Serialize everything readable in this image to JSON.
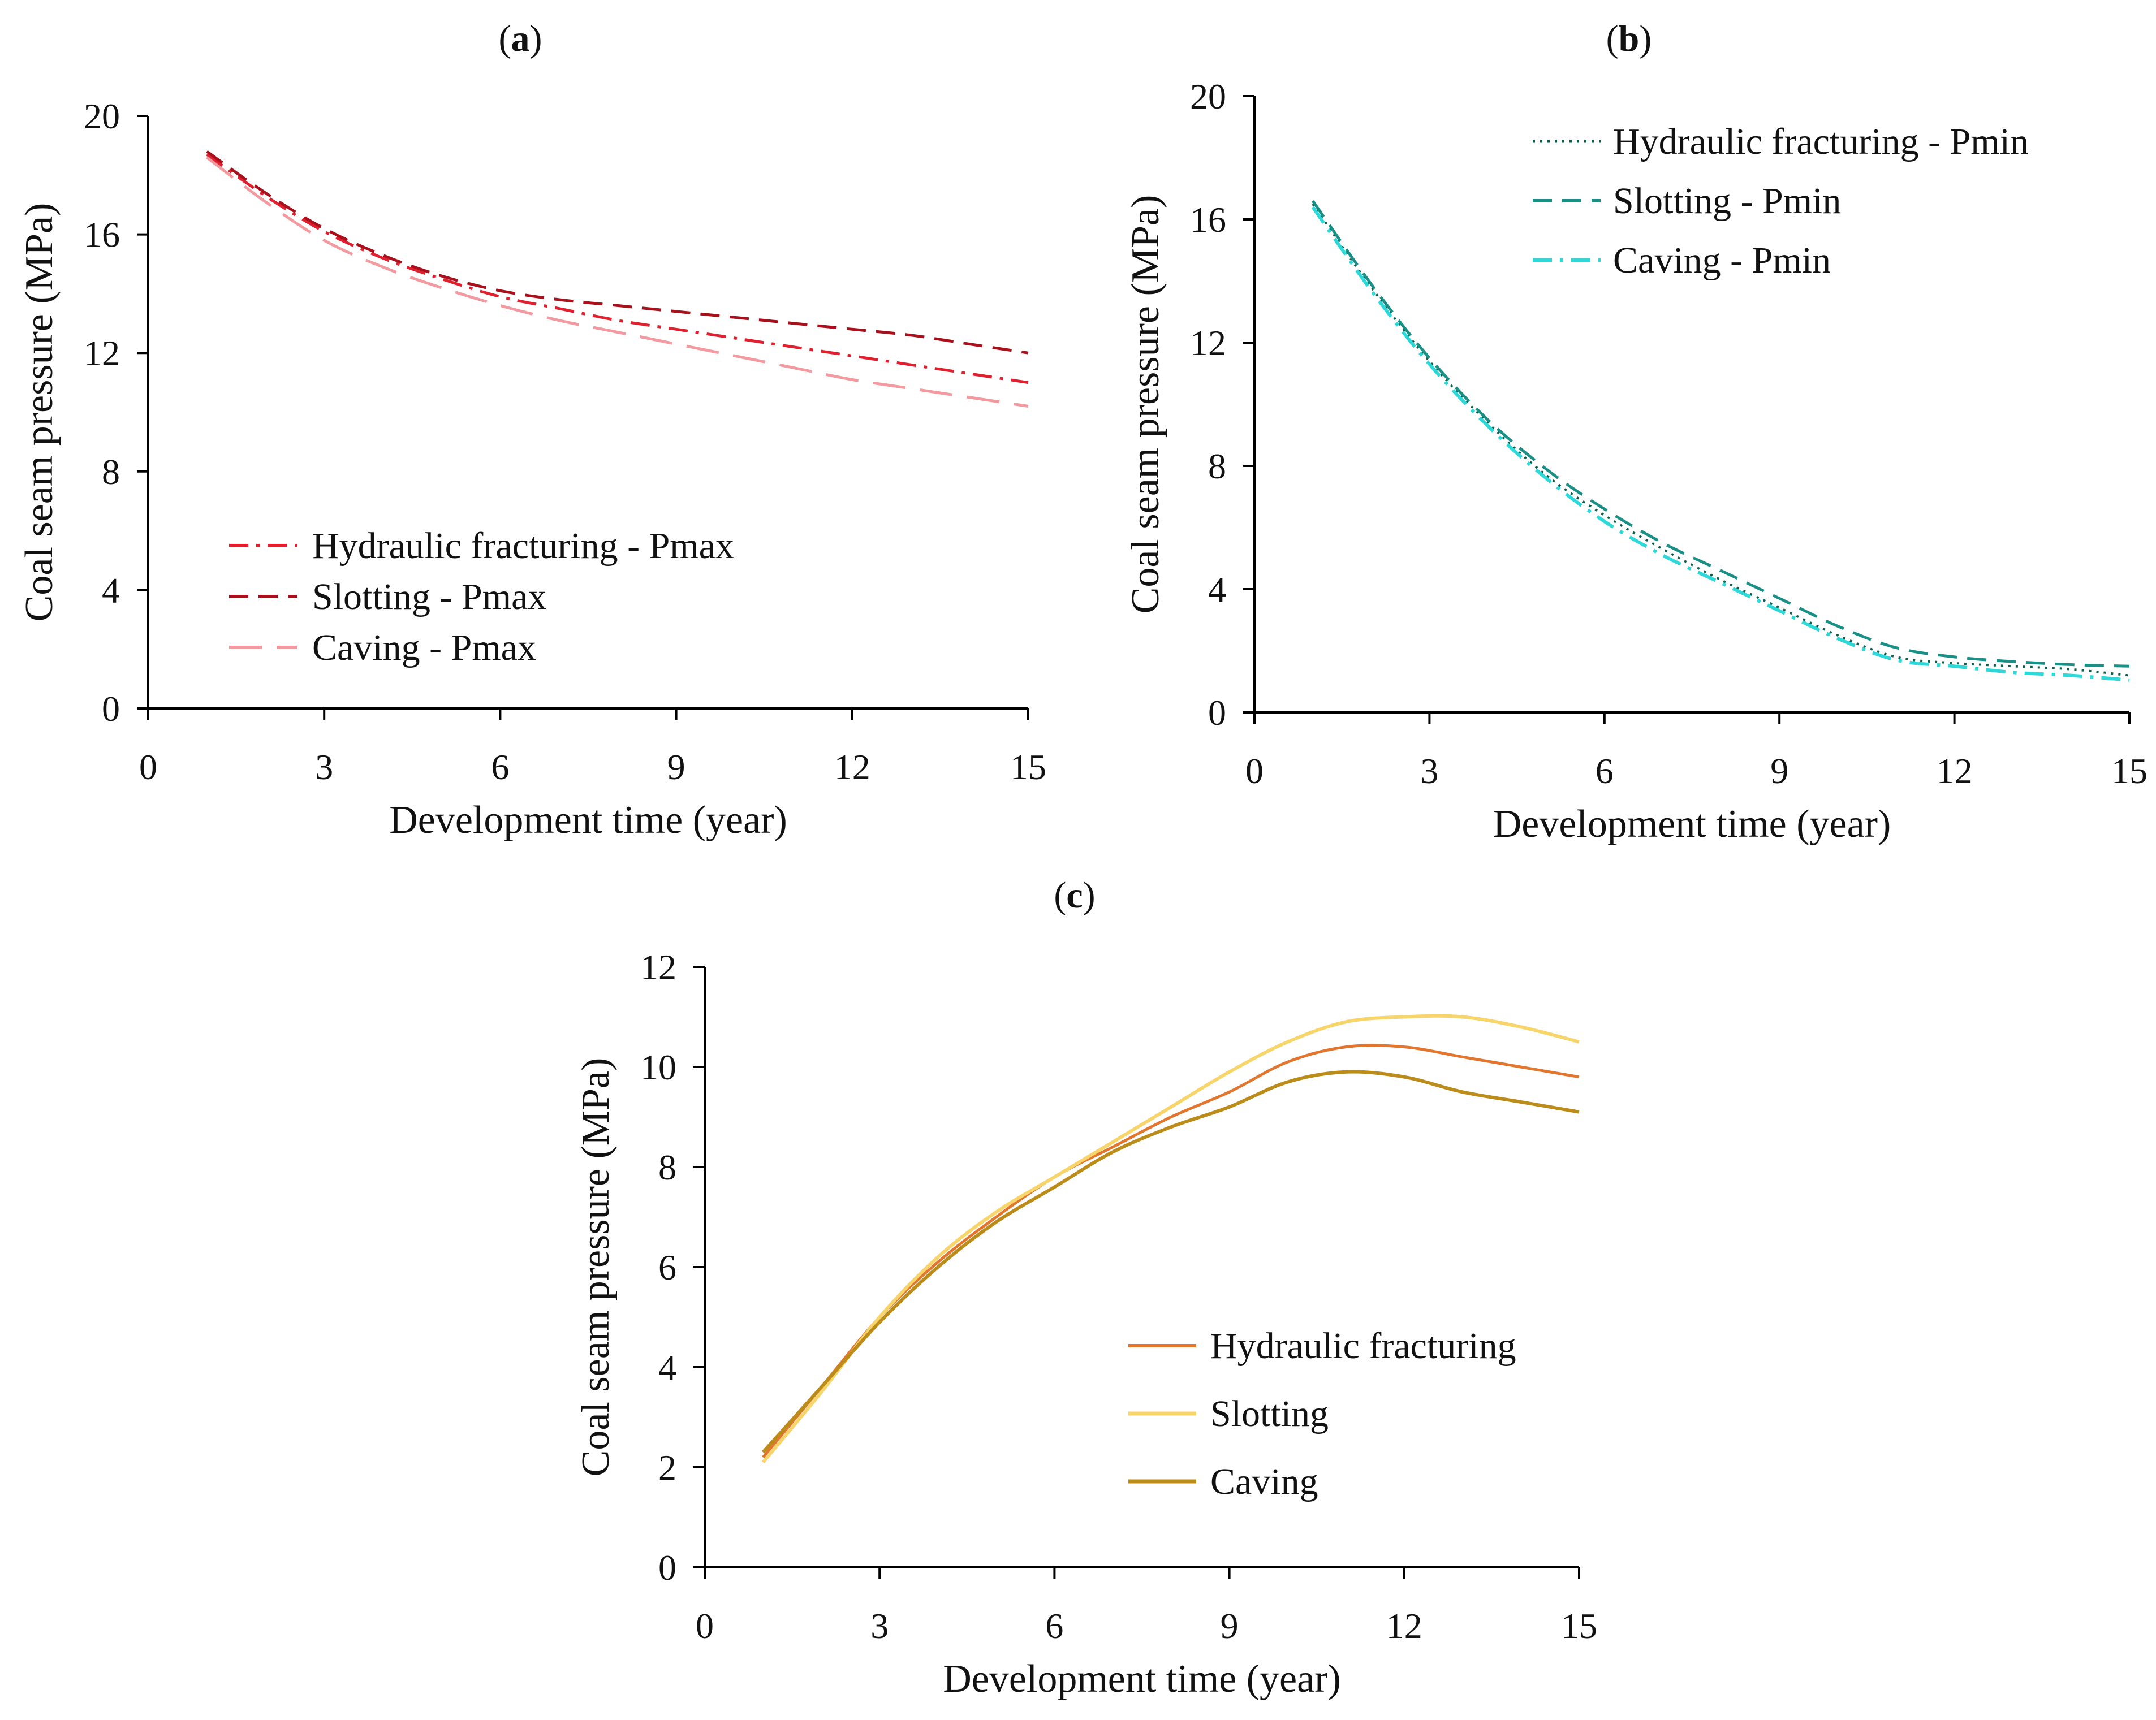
{
  "figure": {
    "background": "#ffffff"
  },
  "chart_data": [
    {
      "id": "a",
      "type": "line",
      "panel_label": "(a)",
      "panel_letter": "a",
      "xlabel": "Development time (year)",
      "ylabel": "Coal seam pressure (MPa)",
      "xlim": [
        0,
        15
      ],
      "ylim": [
        0,
        20
      ],
      "xticks": [
        0,
        3,
        6,
        9,
        12,
        15
      ],
      "yticks": [
        0,
        4,
        8,
        12,
        16,
        20
      ],
      "xtick_labels": [
        "0",
        "3",
        "6",
        "9",
        "12",
        "15"
      ],
      "ytick_labels": [
        "0",
        "4",
        "8",
        "12",
        "16",
        "20"
      ],
      "legend_position": "bottom-left",
      "series": [
        {
          "name": "Hydraulic fracturing - Pmax",
          "color": "#e0202e",
          "dash": "dashdot",
          "width": 5,
          "x": [
            1,
            2,
            3,
            4,
            5,
            6,
            7,
            8,
            9,
            10,
            11,
            12,
            13,
            14,
            15
          ],
          "y": [
            18.7,
            17.3,
            16.1,
            15.2,
            14.5,
            13.9,
            13.5,
            13.1,
            12.8,
            12.5,
            12.2,
            11.9,
            11.6,
            11.3,
            11.0
          ]
        },
        {
          "name": "Slotting - Pmax",
          "color": "#a8111c",
          "dash": "dash",
          "width": 5,
          "x": [
            1,
            2,
            3,
            4,
            5,
            6,
            7,
            8,
            9,
            10,
            11,
            12,
            13,
            14,
            15
          ],
          "y": [
            18.8,
            17.4,
            16.2,
            15.3,
            14.6,
            14.1,
            13.8,
            13.6,
            13.4,
            13.2,
            13.0,
            12.8,
            12.6,
            12.3,
            12.0
          ]
        },
        {
          "name": "Caving - Pmax",
          "color": "#f29a9f",
          "dash": "longdash",
          "width": 5,
          "x": [
            1,
            2,
            3,
            4,
            5,
            6,
            7,
            8,
            9,
            10,
            11,
            12,
            13,
            14,
            15
          ],
          "y": [
            18.6,
            17.1,
            15.8,
            14.9,
            14.2,
            13.6,
            13.1,
            12.7,
            12.3,
            11.9,
            11.5,
            11.1,
            10.8,
            10.5,
            10.2
          ]
        }
      ]
    },
    {
      "id": "b",
      "type": "line",
      "panel_label": "(b)",
      "panel_letter": "b",
      "xlabel": "Development time (year)",
      "ylabel": "Coal seam pressure (MPa)",
      "xlim": [
        0,
        15
      ],
      "ylim": [
        0,
        20
      ],
      "xticks": [
        0,
        3,
        6,
        9,
        12,
        15
      ],
      "yticks": [
        0,
        4,
        8,
        12,
        16,
        20
      ],
      "xtick_labels": [
        "0",
        "3",
        "6",
        "9",
        "12",
        "15"
      ],
      "ytick_labels": [
        "0",
        "4",
        "8",
        "12",
        "16",
        "20"
      ],
      "legend_position": "top-right",
      "series": [
        {
          "name": "Hydraulic fracturing - Pmin",
          "color": "#0d5e4c",
          "dash": "dot",
          "width": 4,
          "x": [
            1,
            2,
            3,
            4,
            5,
            6,
            7,
            8,
            9,
            10,
            11,
            12,
            13,
            14,
            15
          ],
          "y": [
            16.5,
            13.8,
            11.4,
            9.4,
            7.7,
            6.4,
            5.3,
            4.3,
            3.4,
            2.5,
            1.8,
            1.6,
            1.5,
            1.4,
            1.2
          ]
        },
        {
          "name": "Slotting - Pmin",
          "color": "#1a8f85",
          "dash": "dash",
          "width": 5,
          "x": [
            1,
            2,
            3,
            4,
            5,
            6,
            7,
            8,
            9,
            10,
            11,
            12,
            13,
            14,
            15
          ],
          "y": [
            16.6,
            13.9,
            11.5,
            9.5,
            7.9,
            6.6,
            5.5,
            4.6,
            3.7,
            2.8,
            2.1,
            1.8,
            1.65,
            1.55,
            1.5
          ]
        },
        {
          "name": "Caving - Pmin",
          "color": "#2ed8d8",
          "dash": "dashdot",
          "width": 6,
          "x": [
            1,
            2,
            3,
            4,
            5,
            6,
            7,
            8,
            9,
            10,
            11,
            12,
            13,
            14,
            15
          ],
          "y": [
            16.4,
            13.7,
            11.3,
            9.3,
            7.6,
            6.2,
            5.1,
            4.2,
            3.3,
            2.4,
            1.7,
            1.5,
            1.3,
            1.2,
            1.05
          ]
        }
      ]
    },
    {
      "id": "c",
      "type": "line",
      "panel_label": "(c)",
      "panel_letter": "c",
      "xlabel": "Development time (year)",
      "ylabel": "Coal seam pressure (MPa)",
      "xlim": [
        0,
        15
      ],
      "ylim": [
        0,
        12
      ],
      "xticks": [
        0,
        3,
        6,
        9,
        12,
        15
      ],
      "yticks": [
        0,
        2,
        4,
        6,
        8,
        10,
        12
      ],
      "xtick_labels": [
        "0",
        "3",
        "6",
        "9",
        "12",
        "15"
      ],
      "ytick_labels": [
        "0",
        "2",
        "4",
        "6",
        "8",
        "10",
        "12"
      ],
      "legend_position": "bottom-right",
      "series": [
        {
          "name": "Hydraulic fracturing",
          "color": "#e2762e",
          "dash": "solid",
          "width": 5,
          "x": [
            1,
            2,
            3,
            4,
            5,
            6,
            7,
            8,
            9,
            10,
            11,
            12,
            13,
            14,
            15
          ],
          "y": [
            2.2,
            3.6,
            5.0,
            6.1,
            7.0,
            7.8,
            8.4,
            9.0,
            9.5,
            10.1,
            10.4,
            10.4,
            10.2,
            10.0,
            9.8
          ]
        },
        {
          "name": "Slotting",
          "color": "#f7d56a",
          "dash": "solid",
          "width": 6,
          "x": [
            1,
            2,
            3,
            4,
            5,
            6,
            7,
            8,
            9,
            10,
            11,
            12,
            13,
            14,
            15
          ],
          "y": [
            2.1,
            3.5,
            5.0,
            6.2,
            7.1,
            7.8,
            8.5,
            9.2,
            9.9,
            10.5,
            10.9,
            11.0,
            11.0,
            10.8,
            10.5
          ]
        },
        {
          "name": "Caving",
          "color": "#bb8c1a",
          "dash": "solid",
          "width": 6,
          "x": [
            1,
            2,
            3,
            4,
            5,
            6,
            7,
            8,
            9,
            10,
            11,
            12,
            13,
            14,
            15
          ],
          "y": [
            2.3,
            3.6,
            4.9,
            6.0,
            6.9,
            7.6,
            8.3,
            8.8,
            9.2,
            9.7,
            9.9,
            9.8,
            9.5,
            9.3,
            9.1
          ]
        }
      ]
    }
  ]
}
